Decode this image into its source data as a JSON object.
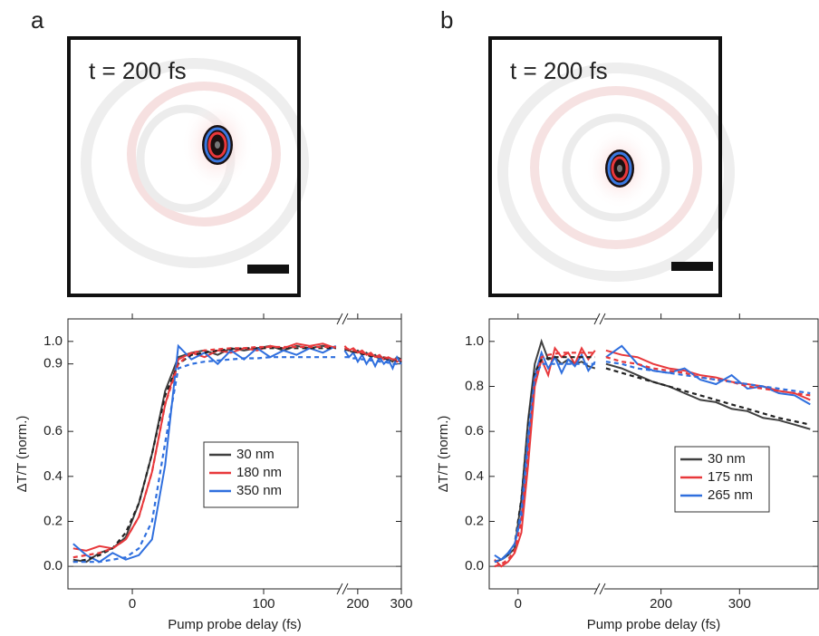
{
  "panels": [
    {
      "letter": "a",
      "image_label": "t = 200 fs"
    },
    {
      "letter": "b",
      "image_label": "t = 200 fs"
    }
  ],
  "chart_data": [
    {
      "type": "line",
      "xlabel": "Pump probe delay (fs)",
      "ylabel": "ΔT/T (norm.)",
      "ylim": [
        -0.1,
        1.1
      ],
      "yticks": [
        {
          "value": 0,
          "label": "0.0"
        },
        0.2,
        0.4,
        0.6,
        0.9,
        {
          "value": 1,
          "label": "1.0"
        }
      ],
      "x_segments": [
        {
          "xlim": [
            -49,
            160
          ],
          "xticks": [
            0,
            100
          ]
        },
        {
          "xlim": [
            165,
            300
          ],
          "xticks": [
            200,
            300
          ]
        }
      ],
      "hline": 0,
      "legend_position": "center",
      "x": [
        -45,
        -35,
        -25,
        -15,
        -5,
        5,
        15,
        25,
        35,
        45,
        55,
        65,
        75,
        85,
        95,
        105,
        115,
        125,
        135,
        145,
        155,
        170,
        180,
        190,
        200,
        210,
        220,
        230,
        240,
        250,
        260,
        270,
        280,
        290,
        300
      ],
      "series": [
        {
          "name": "30 nm",
          "color": "#404040",
          "values": [
            0.03,
            0.02,
            0.06,
            0.08,
            0.13,
            0.28,
            0.5,
            0.78,
            0.93,
            0.95,
            0.96,
            0.94,
            0.97,
            0.96,
            0.97,
            0.98,
            0.96,
            0.98,
            0.97,
            0.98,
            0.97,
            0.97,
            0.96,
            0.95,
            0.96,
            0.94,
            0.95,
            0.93,
            0.94,
            0.92,
            0.93,
            0.92,
            0.91,
            0.93,
            0.92
          ]
        },
        {
          "name": "180 nm",
          "color": "#e8383b",
          "values": [
            0.08,
            0.07,
            0.09,
            0.08,
            0.12,
            0.22,
            0.42,
            0.72,
            0.92,
            0.95,
            0.93,
            0.96,
            0.95,
            0.97,
            0.96,
            0.98,
            0.97,
            0.99,
            0.98,
            0.99,
            0.97,
            0.98,
            0.96,
            0.97,
            0.95,
            0.96,
            0.94,
            0.95,
            0.93,
            0.94,
            0.92,
            0.93,
            0.92,
            0.91,
            0.92
          ]
        },
        {
          "name": "350 nm",
          "color": "#2f6fde",
          "values": [
            0.1,
            0.05,
            0.02,
            0.06,
            0.03,
            0.05,
            0.12,
            0.45,
            0.98,
            0.92,
            0.95,
            0.9,
            0.96,
            0.92,
            0.97,
            0.93,
            0.96,
            0.94,
            0.97,
            0.95,
            0.98,
            0.96,
            0.93,
            0.95,
            0.91,
            0.94,
            0.9,
            0.93,
            0.89,
            0.93,
            0.9,
            0.92,
            0.88,
            0.93,
            0.9
          ]
        }
      ],
      "fits": [
        {
          "color": "#222222",
          "style": "dashed",
          "values": [
            0.02,
            0.03,
            0.05,
            0.08,
            0.15,
            0.28,
            0.5,
            0.76,
            0.9,
            0.94,
            0.95,
            0.96,
            0.965,
            0.97,
            0.97,
            0.97,
            0.97,
            0.97,
            0.97,
            0.97,
            0.97,
            0.965,
            0.96,
            0.955,
            0.95,
            0.945,
            0.94,
            0.935,
            0.93,
            0.93,
            0.925,
            0.92,
            0.92,
            0.915,
            0.91
          ]
        },
        {
          "color": "#e8383b",
          "style": "dashed",
          "values": [
            0.04,
            0.05,
            0.06,
            0.08,
            0.12,
            0.22,
            0.42,
            0.72,
            0.9,
            0.95,
            0.96,
            0.965,
            0.97,
            0.97,
            0.975,
            0.975,
            0.975,
            0.975,
            0.975,
            0.975,
            0.975,
            0.97,
            0.965,
            0.96,
            0.955,
            0.95,
            0.945,
            0.94,
            0.935,
            0.93,
            0.93,
            0.925,
            0.92,
            0.92,
            0.915
          ]
        },
        {
          "color": "#2f6fde",
          "style": "dashed",
          "values": [
            0.02,
            0.02,
            0.02,
            0.03,
            0.04,
            0.08,
            0.2,
            0.55,
            0.88,
            0.9,
            0.91,
            0.915,
            0.92,
            0.925,
            0.925,
            0.93,
            0.93,
            0.93,
            0.93,
            0.93,
            0.93,
            0.93,
            0.93,
            0.925,
            0.925,
            0.92,
            0.92,
            0.915,
            0.915,
            0.91,
            0.91,
            0.905,
            0.9,
            0.9,
            0.9
          ]
        }
      ]
    },
    {
      "type": "line",
      "xlabel": "Pump probe delay (fs)",
      "ylabel": "ΔT/T (norm.)",
      "ylim": [
        -0.1,
        1.1
      ],
      "yticks": [
        {
          "value": 0,
          "label": "0.0"
        },
        0.2,
        0.4,
        0.6,
        0.8,
        {
          "value": 1,
          "label": "1.0"
        }
      ],
      "x_segments": [
        {
          "xlim": [
            -43,
            122
          ],
          "xticks": [
            0
          ]
        },
        {
          "xlim": [
            122,
            400
          ],
          "xticks": [
            200,
            300
          ]
        }
      ],
      "hline": 0,
      "legend_position": "lower right",
      "x": [
        -35,
        -25,
        -15,
        -5,
        5,
        15,
        25,
        35,
        45,
        55,
        65,
        75,
        85,
        95,
        105,
        115,
        130,
        150,
        170,
        190,
        210,
        230,
        250,
        270,
        290,
        310,
        330,
        350,
        370,
        390
      ],
      "series": [
        {
          "name": "30 nm",
          "color": "#404040",
          "values": [
            0.02,
            0.03,
            0.05,
            0.08,
            0.3,
            0.65,
            0.9,
            1.0,
            0.92,
            0.93,
            0.9,
            0.92,
            0.9,
            0.91,
            0.89,
            0.88,
            0.9,
            0.88,
            0.85,
            0.82,
            0.8,
            0.77,
            0.74,
            0.73,
            0.7,
            0.69,
            0.66,
            0.65,
            0.63,
            0.61
          ]
        },
        {
          "name": "175 nm",
          "color": "#e8383b",
          "values": [
            0.03,
            0.0,
            0.02,
            0.06,
            0.15,
            0.45,
            0.8,
            0.92,
            0.85,
            0.97,
            0.93,
            0.95,
            0.9,
            0.97,
            0.92,
            0.96,
            0.96,
            0.94,
            0.93,
            0.9,
            0.88,
            0.87,
            0.85,
            0.84,
            0.82,
            0.81,
            0.8,
            0.78,
            0.77,
            0.74
          ]
        },
        {
          "name": "265 nm",
          "color": "#2f6fde",
          "values": [
            0.05,
            0.03,
            0.06,
            0.1,
            0.22,
            0.55,
            0.85,
            0.95,
            0.88,
            0.93,
            0.86,
            0.92,
            0.89,
            0.94,
            0.87,
            0.91,
            0.93,
            0.98,
            0.9,
            0.87,
            0.86,
            0.88,
            0.83,
            0.81,
            0.85,
            0.79,
            0.8,
            0.77,
            0.76,
            0.72
          ]
        }
      ],
      "fits": [
        {
          "color": "#222222",
          "style": "dashed",
          "values": [
            0.02,
            0.03,
            0.05,
            0.1,
            0.3,
            0.62,
            0.86,
            0.92,
            0.925,
            0.93,
            0.93,
            0.93,
            0.93,
            0.93,
            0.93,
            0.93,
            0.88,
            0.86,
            0.84,
            0.82,
            0.8,
            0.78,
            0.76,
            0.74,
            0.72,
            0.7,
            0.68,
            0.66,
            0.645,
            0.63
          ]
        },
        {
          "color": "#e8383b",
          "style": "dashed",
          "values": [
            0.0,
            0.01,
            0.03,
            0.07,
            0.2,
            0.5,
            0.82,
            0.93,
            0.94,
            0.945,
            0.95,
            0.95,
            0.95,
            0.95,
            0.95,
            0.95,
            0.93,
            0.91,
            0.9,
            0.88,
            0.87,
            0.86,
            0.84,
            0.83,
            0.82,
            0.8,
            0.79,
            0.78,
            0.77,
            0.76
          ]
        },
        {
          "color": "#2f6fde",
          "style": "dashed",
          "values": [
            0.02,
            0.03,
            0.05,
            0.1,
            0.25,
            0.58,
            0.84,
            0.9,
            0.9,
            0.9,
            0.9,
            0.9,
            0.9,
            0.9,
            0.9,
            0.9,
            0.91,
            0.9,
            0.88,
            0.87,
            0.86,
            0.85,
            0.84,
            0.83,
            0.82,
            0.81,
            0.8,
            0.79,
            0.78,
            0.77
          ]
        }
      ]
    }
  ]
}
